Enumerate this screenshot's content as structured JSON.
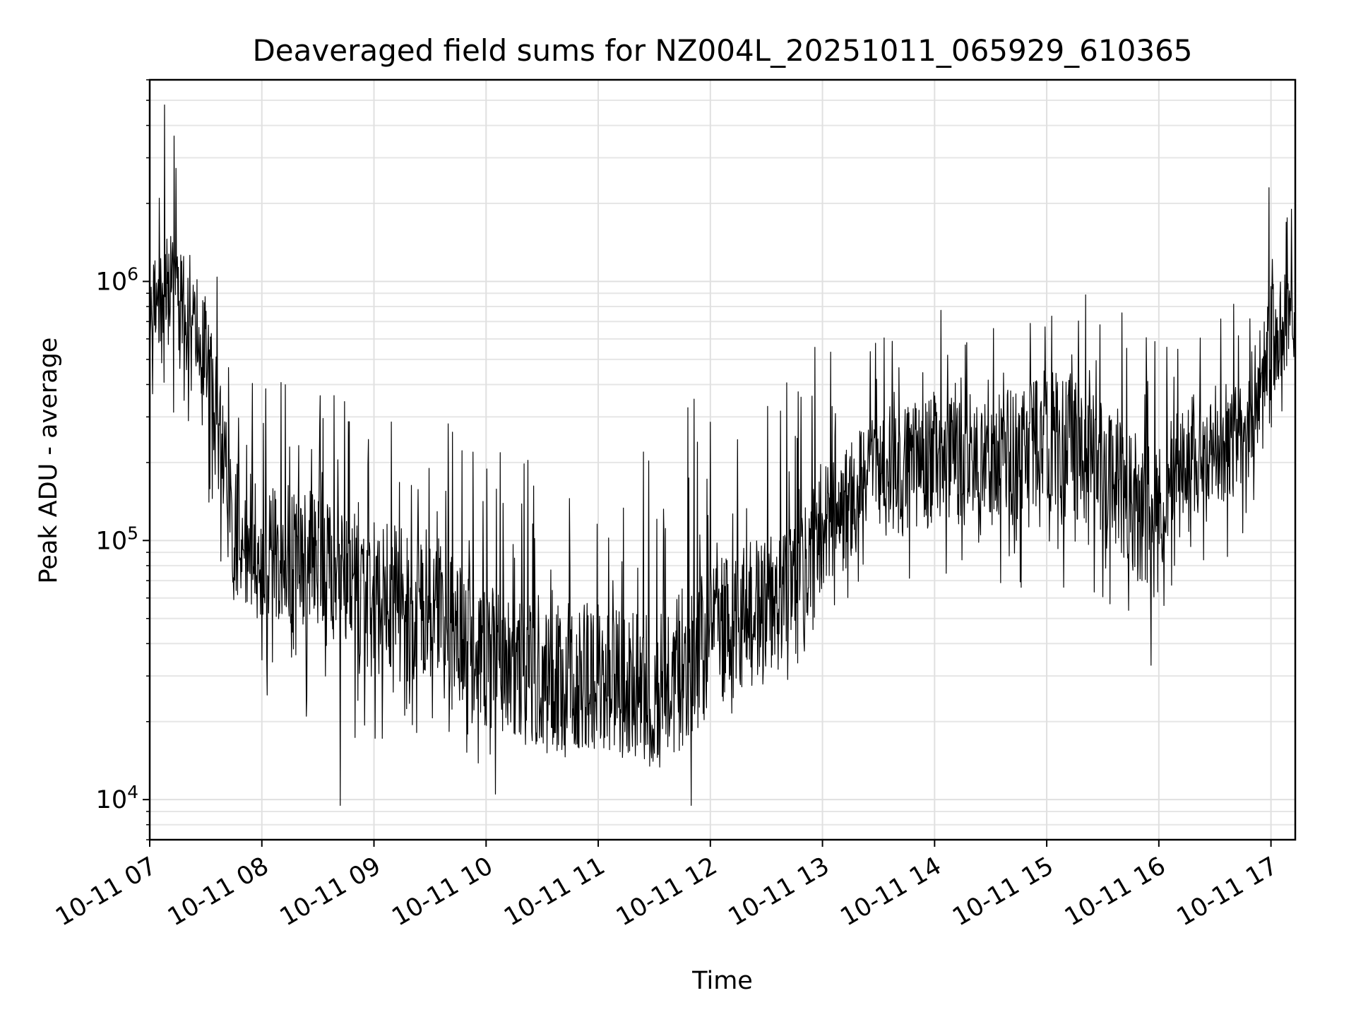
{
  "chart_data": {
    "type": "line",
    "title": "Deaveraged field sums for NZ004L_20251011_065929_610365",
    "xlabel": "Time",
    "ylabel": "Peak ADU - average",
    "yscale": "log",
    "xlim": [
      "2025-10-11 07:00",
      "2025-10-11 17:13"
    ],
    "ylim": [
      7000,
      6000000
    ],
    "grid": true,
    "legend": false,
    "colors": {
      "series": "#000000",
      "grid": "#e0e0e0",
      "background": "#ffffff"
    },
    "x_tick_labels": [
      "10-11 07",
      "10-11 08",
      "10-11 09",
      "10-11 10",
      "10-11 11",
      "10-11 12",
      "10-11 13",
      "10-11 14",
      "10-11 15",
      "10-11 16",
      "10-11 17"
    ],
    "y_tick_labels": [
      {
        "value": 10000,
        "base": "10",
        "exp": "4"
      },
      {
        "value": 100000,
        "base": "10",
        "exp": "5"
      },
      {
        "value": 1000000,
        "base": "10",
        "exp": "6"
      }
    ],
    "series": [
      {
        "envelope": [
          {
            "t": "2025-10-11 07:00",
            "median": 600000,
            "low": 150000,
            "high": 2000000
          },
          {
            "t": "2025-10-11 07:10",
            "median": 900000,
            "low": 300000,
            "high": 4500000
          },
          {
            "t": "2025-10-11 07:25",
            "median": 700000,
            "low": 250000,
            "high": 2500000
          },
          {
            "t": "2025-10-11 07:35",
            "median": 350000,
            "low": 100000,
            "high": 1300000
          },
          {
            "t": "2025-10-11 07:45",
            "median": 110000,
            "low": 30000,
            "high": 500000
          },
          {
            "t": "2025-10-11 08:00",
            "median": 90000,
            "low": 25000,
            "high": 450000
          },
          {
            "t": "2025-10-11 08:30",
            "median": 80000,
            "low": 20000,
            "high": 400000
          },
          {
            "t": "2025-10-11 09:00",
            "median": 60000,
            "low": 15000,
            "high": 300000
          },
          {
            "t": "2025-10-11 09:30",
            "median": 55000,
            "low": 15000,
            "high": 350000
          },
          {
            "t": "2025-10-11 10:00",
            "median": 35000,
            "low": 12000,
            "high": 250000
          },
          {
            "t": "2025-10-11 10:30",
            "median": 30000,
            "low": 12000,
            "high": 200000
          },
          {
            "t": "2025-10-11 11:00",
            "median": 30000,
            "low": 14000,
            "high": 250000
          },
          {
            "t": "2025-10-11 11:30",
            "median": 25000,
            "low": 14000,
            "high": 300000
          },
          {
            "t": "2025-10-11 11:50",
            "median": 35000,
            "low": 16000,
            "high": 400000
          },
          {
            "t": "2025-10-11 12:15",
            "median": 50000,
            "low": 22000,
            "high": 450000
          },
          {
            "t": "2025-10-11 12:45",
            "median": 60000,
            "low": 30000,
            "high": 500000
          },
          {
            "t": "2025-10-11 13:00",
            "median": 110000,
            "low": 50000,
            "high": 600000
          },
          {
            "t": "2025-10-11 13:30",
            "median": 180000,
            "low": 70000,
            "high": 800000
          },
          {
            "t": "2025-10-11 14:00",
            "median": 200000,
            "low": 70000,
            "high": 900000
          },
          {
            "t": "2025-10-11 14:30",
            "median": 200000,
            "low": 70000,
            "high": 900000
          },
          {
            "t": "2025-10-11 15:00",
            "median": 250000,
            "low": 60000,
            "high": 1000000
          },
          {
            "t": "2025-10-11 15:30",
            "median": 180000,
            "low": 50000,
            "high": 900000
          },
          {
            "t": "2025-10-11 15:55",
            "median": 120000,
            "low": 40000,
            "high": 700000
          },
          {
            "t": "2025-10-11 16:15",
            "median": 220000,
            "low": 80000,
            "high": 800000
          },
          {
            "t": "2025-10-11 16:45",
            "median": 250000,
            "low": 80000,
            "high": 900000
          },
          {
            "t": "2025-10-11 17:00",
            "median": 600000,
            "low": 200000,
            "high": 2000000
          },
          {
            "t": "2025-10-11 17:13",
            "median": 700000,
            "low": 250000,
            "high": 2000000
          }
        ],
        "annotated_points": [
          {
            "t": "2025-10-11 07:08",
            "y": 4800000
          },
          {
            "t": "2025-10-11 10:05",
            "y": 10500
          },
          {
            "t": "2025-10-11 11:50",
            "y": 9500
          },
          {
            "t": "2025-10-11 08:42",
            "y": 9500
          },
          {
            "t": "2025-10-11 15:56",
            "y": 33000
          },
          {
            "t": "2025-10-11 16:59",
            "y": 2300000
          }
        ]
      }
    ]
  }
}
